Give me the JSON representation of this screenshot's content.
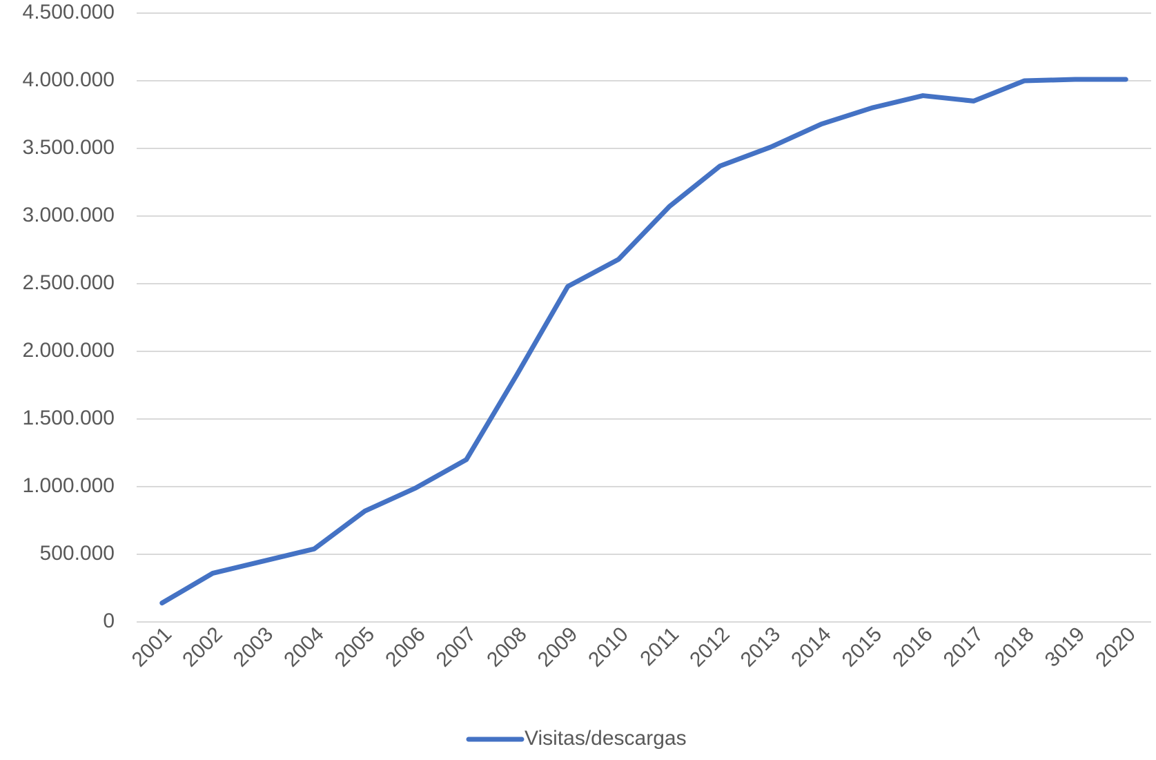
{
  "chart_data": {
    "type": "line",
    "categories": [
      "2001",
      "2002",
      "2003",
      "2004",
      "2005",
      "2006",
      "2007",
      "2008",
      "2009",
      "2010",
      "2011",
      "2012",
      "2013",
      "2014",
      "2015",
      "2016",
      "2017",
      "2018",
      "3019",
      "2020"
    ],
    "series": [
      {
        "name": "Visitas/descargas",
        "color": "#4472c4",
        "values": [
          140000,
          360000,
          450000,
          540000,
          820000,
          990000,
          1200000,
          1830000,
          2480000,
          2680000,
          3070000,
          3370000,
          3510000,
          3680000,
          3800000,
          3890000,
          3850000,
          4000000,
          4010000,
          4010000
        ]
      }
    ],
    "ylim": [
      0,
      4500000
    ],
    "yticks": [
      0,
      {
        "value": 500000,
        "label": "500.000"
      },
      {
        "value": 1000000,
        "label": "1.000.000"
      },
      {
        "value": 1500000,
        "label": "1.500.000"
      },
      {
        "value": 2000000,
        "label": "2.000.000"
      },
      {
        "value": 2500000,
        "label": "2.500.000"
      },
      {
        "value": 3000000,
        "label": "3.000.000"
      },
      {
        "value": 3500000,
        "label": "3.500.000"
      },
      {
        "value": 4000000,
        "label": "4.000.000"
      },
      {
        "value": 4500000,
        "label": "4.500.000"
      }
    ],
    "grid": true,
    "legend": "bottom"
  }
}
